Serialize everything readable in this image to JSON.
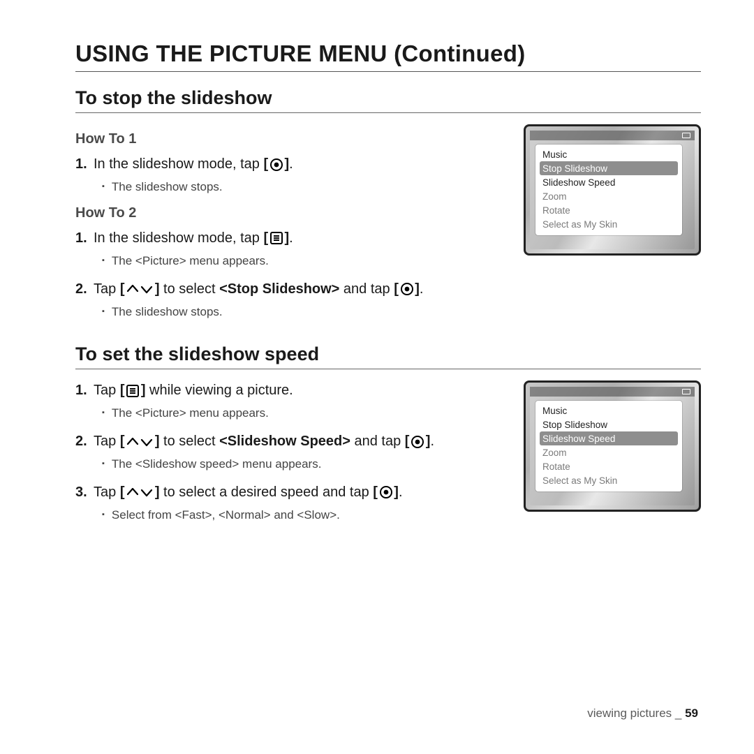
{
  "page": {
    "title": "USING THE PICTURE MENU (Continued)",
    "footer_section": "viewing pictures",
    "footer_sep": " _ ",
    "footer_page": "59"
  },
  "section1": {
    "heading": "To stop the slideshow",
    "howto1": {
      "label": "How To 1",
      "step1_pre": "In the slideshow mode, tap ",
      "step1_post": ".",
      "sub1": "The slideshow stops."
    },
    "howto2": {
      "label": "How To 2",
      "step1_pre": "In the slideshow mode, tap ",
      "step1_post": ".",
      "sub1": "The <Picture> menu appears.",
      "step2_pre": "Tap ",
      "step2_mid": " to select ",
      "step2_bold": "<Stop Slideshow>",
      "step2_after": " and tap ",
      "step2_post": ".",
      "sub2": "The slideshow stops."
    },
    "device_menu": {
      "items": [
        {
          "label": "Music",
          "dim": false,
          "sel": false
        },
        {
          "label": "Stop Slideshow",
          "dim": false,
          "sel": true
        },
        {
          "label": "Slideshow Speed",
          "dim": false,
          "sel": false
        },
        {
          "label": "Zoom",
          "dim": true,
          "sel": false
        },
        {
          "label": "Rotate",
          "dim": true,
          "sel": false
        },
        {
          "label": "Select as My Skin",
          "dim": true,
          "sel": false
        }
      ]
    }
  },
  "section2": {
    "heading": "To set the slideshow speed",
    "step1_pre": "Tap ",
    "step1_post": " while viewing a picture.",
    "sub1": "The <Picture> menu appears.",
    "step2_pre": "Tap ",
    "step2_mid": " to select ",
    "step2_bold": "<Slideshow Speed>",
    "step2_after": " and tap ",
    "step2_post": ".",
    "sub2": "The <Slideshow speed> menu appears.",
    "step3_pre": "Tap ",
    "step3_mid": " to select a desired speed and tap ",
    "step3_post": ".",
    "sub3": "Select from <Fast>, <Normal> and <Slow>.",
    "device_menu": {
      "items": [
        {
          "label": "Music",
          "dim": false,
          "sel": false
        },
        {
          "label": "Stop Slideshow",
          "dim": false,
          "sel": false
        },
        {
          "label": "Slideshow Speed",
          "dim": false,
          "sel": true
        },
        {
          "label": "Zoom",
          "dim": true,
          "sel": false
        },
        {
          "label": "Rotate",
          "dim": true,
          "sel": false
        },
        {
          "label": "Select as My Skin",
          "dim": true,
          "sel": false
        }
      ]
    }
  },
  "icons": {
    "circle_label": "[◉]",
    "menu_label": "[☰]",
    "arrows_label": "[⌃⌄]"
  },
  "style": {
    "h1_fontsize": 33,
    "h2_fontsize": 27,
    "h3_fontsize": 20,
    "body_fontsize": 20,
    "sub_fontsize": 17,
    "text_color": "#1a1a1a",
    "muted_color": "#4a4a4a",
    "device_border_color": "#222",
    "device_bg": "#c8c8c8",
    "menu_bg": "#ffffff",
    "menu_sel_bg": "#8e8e8e",
    "menu_dim_color": "#7a7a7a",
    "page_bg": "#ffffff",
    "rule_color": "#555555"
  }
}
